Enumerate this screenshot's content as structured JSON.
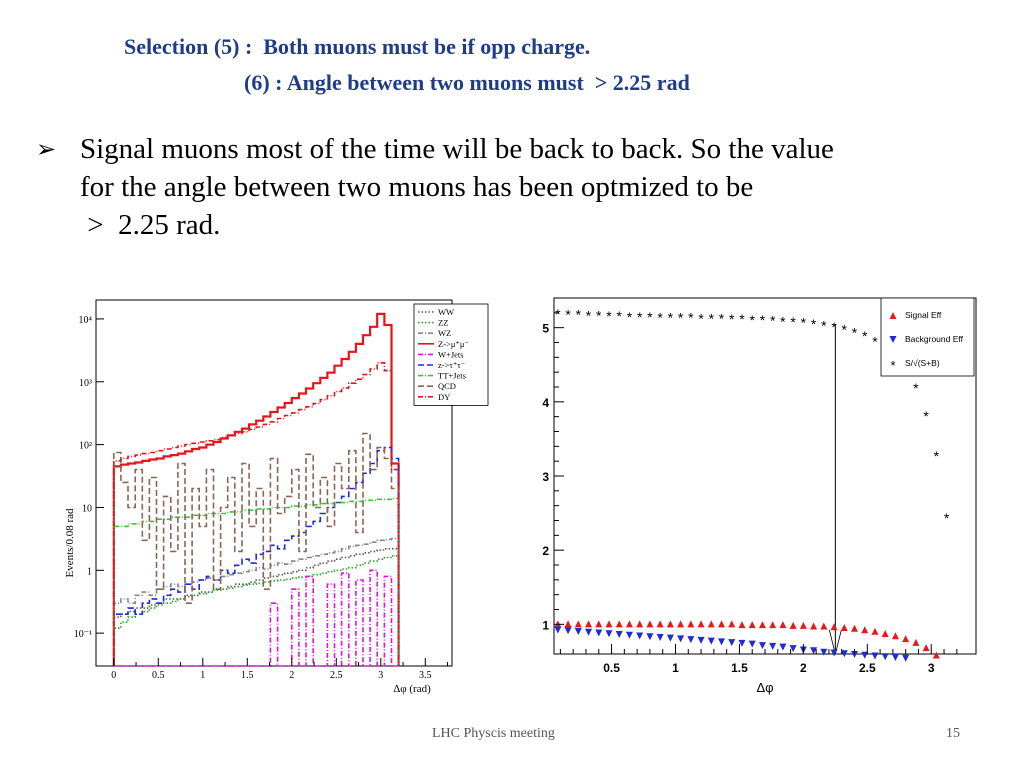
{
  "slide": {
    "title_line1": "Selection (5) :  Both muons must be if opp charge.",
    "title_line2": "(6) : Angle between two muons must  > 2.25 rad",
    "bullet_text_line1": "Signal muons most of the time will be back to back.  So the value",
    "bullet_text_line2": "for the angle between two muons has been optmized to be",
    "bullet_text_line3": " >  2.25 rad.",
    "footer_center": "LHC Physcis meeting",
    "page_number": "15"
  },
  "chart_data": [
    {
      "type": "line",
      "subtype": "step-histogram",
      "xlabel": "Δφ (rad)",
      "ylabel": "Events/0.08 rad",
      "yscale": "log",
      "xlim": [
        -0.2,
        3.8
      ],
      "ylim": [
        0.03,
        20000
      ],
      "xticks": [
        "0",
        "0.5",
        "1",
        "1.5",
        "2",
        "2.5",
        "3",
        "3.5"
      ],
      "xtick_values": [
        0,
        0.5,
        1,
        1.5,
        2,
        2.5,
        3,
        3.5
      ],
      "yticks": [
        "10⁻¹",
        "1",
        "10",
        "10²",
        "10³",
        "10⁴"
      ],
      "ytick_values": [
        0.1,
        1,
        10,
        100,
        1000,
        10000
      ],
      "legend_position": "top-right",
      "bin_width": 0.08,
      "series": [
        {
          "name": "WW",
          "color": "#5a5a5a",
          "style": "dotted",
          "values": [
            0.18,
            0.2,
            0.22,
            0.25,
            0.25,
            0.28,
            0.3,
            0.35,
            0.35,
            0.35,
            0.4,
            0.4,
            0.45,
            0.45,
            0.5,
            0.5,
            0.55,
            0.6,
            0.6,
            0.65,
            0.7,
            0.75,
            0.8,
            0.85,
            0.9,
            0.95,
            1.0,
            1.1,
            1.2,
            1.3,
            1.4,
            1.5,
            1.6,
            1.7,
            1.8,
            1.9,
            2.0,
            2.1,
            2.2,
            2.2
          ]
        },
        {
          "name": "ZZ",
          "color": "#22aa22",
          "style": "dotted",
          "values": [
            0.12,
            0.15,
            0.18,
            0.2,
            0.22,
            0.25,
            0.28,
            0.3,
            0.32,
            0.35,
            0.38,
            0.4,
            0.42,
            0.45,
            0.48,
            0.5,
            0.52,
            0.55,
            0.58,
            0.6,
            0.62,
            0.65,
            0.68,
            0.7,
            0.72,
            0.75,
            0.78,
            0.8,
            0.85,
            0.9,
            0.95,
            1.0,
            1.05,
            1.1,
            1.2,
            1.3,
            1.4,
            1.5,
            1.6,
            1.7
          ]
        },
        {
          "name": "WZ",
          "color": "#888888",
          "style": "dash-dot",
          "values": [
            0.3,
            0.35,
            0.3,
            0.4,
            0.45,
            0.4,
            0.5,
            0.55,
            0.6,
            0.55,
            0.6,
            0.65,
            0.7,
            0.75,
            0.7,
            0.8,
            0.85,
            0.9,
            0.95,
            1.0,
            1.1,
            1.05,
            1.2,
            1.3,
            1.25,
            1.4,
            1.5,
            1.6,
            1.7,
            1.8,
            1.9,
            2.0,
            2.2,
            2.4,
            2.5,
            2.6,
            2.8,
            3.0,
            3.1,
            3.2
          ]
        },
        {
          "name": "Z->μ⁺μ⁻",
          "color": "#e4161c",
          "style": "solid",
          "values": [
            45,
            48,
            50,
            52,
            55,
            58,
            60,
            65,
            68,
            72,
            78,
            85,
            90,
            100,
            110,
            125,
            140,
            160,
            180,
            210,
            240,
            280,
            330,
            390,
            460,
            550,
            650,
            780,
            950,
            1150,
            1400,
            1800,
            2300,
            3000,
            4000,
            5500,
            7500,
            12000,
            8000,
            50
          ]
        },
        {
          "name": "W+Jets",
          "color": "#e010e0",
          "style": "dash-dot",
          "values": [
            0.03,
            0.03,
            0.03,
            0.03,
            0.03,
            0.03,
            0.03,
            0.03,
            0.03,
            0.03,
            0.03,
            0.03,
            0.03,
            0.03,
            0.03,
            0.03,
            0.03,
            0.03,
            0.03,
            0.03,
            0.03,
            0.03,
            0.3,
            0.03,
            0.03,
            0.5,
            0.03,
            0.8,
            0.03,
            0.03,
            0.6,
            0.03,
            0.9,
            0.03,
            0.7,
            0.03,
            1.0,
            0.03,
            0.8,
            0.03
          ]
        },
        {
          "name": "z->τ⁺τ⁻",
          "color": "#1f2ad8",
          "style": "dashed",
          "values": [
            0.2,
            0.2,
            0.25,
            0.2,
            0.3,
            0.35,
            0.3,
            0.4,
            0.5,
            0.45,
            0.6,
            0.5,
            0.7,
            0.8,
            0.7,
            1.0,
            0.9,
            1.2,
            1.5,
            1.3,
            1.8,
            2.0,
            2.5,
            2.2,
            3.0,
            3.5,
            4.0,
            5.0,
            6.0,
            8.0,
            10.0,
            12.0,
            15.0,
            20.0,
            25.0,
            35.0,
            50.0,
            80.0,
            90.0,
            60.0
          ]
        },
        {
          "name": "TT+Jets",
          "color": "#36c836",
          "style": "dash-dot",
          "values": [
            5.0,
            5.0,
            5.5,
            5.5,
            6.0,
            6.0,
            6.5,
            6.5,
            7.0,
            7.0,
            7.0,
            7.5,
            7.5,
            8.0,
            8.0,
            8.0,
            8.5,
            8.5,
            9.0,
            9.0,
            9.5,
            9.5,
            10.0,
            10.0,
            10.0,
            10.5,
            10.5,
            11.0,
            11.0,
            11.5,
            11.5,
            12.0,
            12.0,
            12.5,
            12.5,
            13.0,
            13.0,
            13.5,
            13.5,
            14.0
          ]
        },
        {
          "name": "QCD",
          "color": "#8b6655",
          "style": "dashed",
          "values": [
            75,
            25,
            10,
            40,
            3,
            30,
            0.5,
            15,
            2,
            50,
            0.3,
            20,
            5,
            40,
            0.5,
            10,
            30,
            2,
            50,
            5,
            20,
            0.5,
            60,
            8,
            15,
            40,
            2,
            70,
            10,
            30,
            5,
            50,
            20,
            80,
            4,
            150,
            40,
            90,
            60,
            20
          ]
        },
        {
          "name": "DY",
          "color": "#e4161c",
          "style": "dash-dot",
          "values": [
            55,
            60,
            65,
            68,
            72,
            75,
            80,
            85,
            90,
            95,
            100,
            105,
            110,
            115,
            120,
            130,
            140,
            150,
            160,
            175,
            190,
            210,
            230,
            260,
            290,
            320,
            360,
            400,
            450,
            520,
            600,
            700,
            800,
            950,
            1100,
            1300,
            1600,
            2000,
            1500,
            40
          ]
        }
      ]
    },
    {
      "type": "scatter",
      "xlabel": "Δφ",
      "ylabel": "",
      "xlim": [
        0.05,
        3.35
      ],
      "ylim": [
        0.6,
        5.4
      ],
      "xticks": [
        "0.5",
        "1",
        "1.5",
        "2",
        "2.5",
        "3"
      ],
      "xtick_values": [
        0.5,
        1,
        1.5,
        2,
        2.5,
        3
      ],
      "yticks": [
        "1",
        "2",
        "3",
        "4",
        "5"
      ],
      "ytick_values": [
        1,
        2,
        3,
        4,
        5
      ],
      "legend_position": "top-right",
      "cut_line_x": 2.25,
      "series": [
        {
          "name": "Signal Eff",
          "color": "#e41a1c",
          "marker": "triangle-up",
          "x": [
            0.08,
            0.16,
            0.24,
            0.32,
            0.4,
            0.48,
            0.56,
            0.64,
            0.72,
            0.8,
            0.88,
            0.96,
            1.04,
            1.12,
            1.2,
            1.28,
            1.36,
            1.44,
            1.52,
            1.6,
            1.68,
            1.76,
            1.84,
            1.92,
            2.0,
            2.08,
            2.16,
            2.24,
            2.32,
            2.4,
            2.48,
            2.56,
            2.64,
            2.72,
            2.8,
            2.88,
            2.96,
            3.04
          ],
          "y": [
            1.0,
            1.0,
            1.0,
            1.0,
            1.0,
            1.0,
            1.0,
            1.0,
            1.0,
            1.0,
            1.0,
            1.0,
            1.0,
            1.0,
            1.0,
            1.0,
            1.0,
            1.0,
            0.99,
            0.99,
            0.99,
            0.99,
            0.99,
            0.98,
            0.98,
            0.97,
            0.97,
            0.96,
            0.95,
            0.94,
            0.92,
            0.9,
            0.87,
            0.84,
            0.8,
            0.75,
            0.68,
            0.58
          ]
        },
        {
          "name": "Background Eff",
          "color": "#1f2ad8",
          "marker": "triangle-down",
          "x": [
            0.08,
            0.16,
            0.24,
            0.32,
            0.4,
            0.48,
            0.56,
            0.64,
            0.72,
            0.8,
            0.88,
            0.96,
            1.04,
            1.12,
            1.2,
            1.28,
            1.36,
            1.44,
            1.52,
            1.6,
            1.68,
            1.76,
            1.84,
            1.92,
            2.0,
            2.08,
            2.16,
            2.24,
            2.32,
            2.4,
            2.48,
            2.56,
            2.64,
            2.72,
            2.8
          ],
          "y": [
            0.93,
            0.92,
            0.91,
            0.9,
            0.89,
            0.88,
            0.87,
            0.86,
            0.85,
            0.84,
            0.83,
            0.82,
            0.81,
            0.8,
            0.79,
            0.78,
            0.77,
            0.76,
            0.75,
            0.74,
            0.72,
            0.71,
            0.7,
            0.68,
            0.66,
            0.65,
            0.63,
            0.62,
            0.61,
            0.6,
            0.59,
            0.58,
            0.57,
            0.56,
            0.55
          ]
        },
        {
          "name": "S/√(S+B)",
          "color": "#000000",
          "marker": "asterisk",
          "x": [
            0.08,
            0.16,
            0.24,
            0.32,
            0.4,
            0.48,
            0.56,
            0.64,
            0.72,
            0.8,
            0.88,
            0.96,
            1.04,
            1.12,
            1.2,
            1.28,
            1.36,
            1.44,
            1.52,
            1.6,
            1.68,
            1.76,
            1.84,
            1.92,
            2.0,
            2.08,
            2.16,
            2.24,
            2.32,
            2.4,
            2.48,
            2.56,
            2.64,
            2.72,
            2.8,
            2.88,
            2.96,
            3.04,
            3.12
          ],
          "y": [
            5.2,
            5.19,
            5.19,
            5.18,
            5.18,
            5.17,
            5.17,
            5.16,
            5.16,
            5.16,
            5.15,
            5.15,
            5.15,
            5.15,
            5.14,
            5.14,
            5.14,
            5.13,
            5.13,
            5.12,
            5.12,
            5.11,
            5.1,
            5.09,
            5.08,
            5.06,
            5.04,
            5.02,
            4.99,
            4.95,
            4.9,
            4.83,
            4.74,
            4.62,
            4.45,
            4.2,
            3.82,
            3.28,
            2.45
          ]
        }
      ]
    }
  ]
}
